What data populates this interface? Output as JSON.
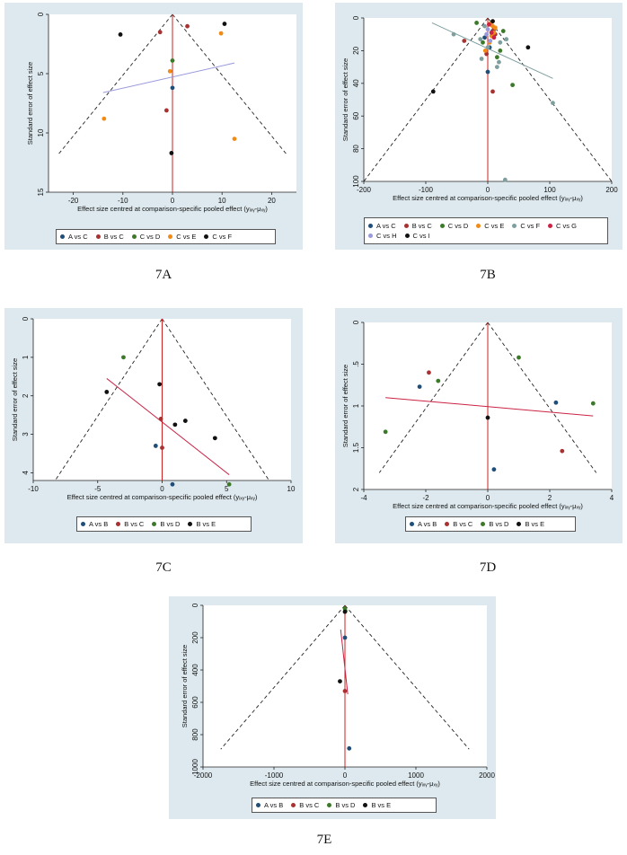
{
  "ylabel": "Standard error of effect size",
  "xlabel": "Effect size centred at comparison-specific pooled effect (yᵢₓᵧ-μₓᵧ)",
  "chart_data": [
    {
      "id": "7A",
      "type": "scatter",
      "caption": "7A",
      "xlabel": "Effect size centred at comparison-specific pooled effect (yᵢₓᵧ-μₓᵧ)",
      "ylabel": "Standard error of effect size",
      "xlim": [
        -25,
        25
      ],
      "ylim": [
        0,
        15
      ],
      "y_reversed": true,
      "xticks": [
        -20,
        -10,
        0,
        10,
        20
      ],
      "yticks": [
        0,
        5,
        10,
        15
      ],
      "funnel": {
        "apex": [
          0,
          0
        ],
        "bottom_se": 11.8,
        "bottom_half_width": 23
      },
      "series": [
        {
          "name": "A vs C",
          "color": "#1f4e79",
          "points": [
            [
              0,
              6.2
            ]
          ]
        },
        {
          "name": "B vs C",
          "color": "#a83232",
          "points": [
            [
              -2.5,
              1.5
            ],
            [
              3,
              1.0
            ],
            [
              -1.2,
              8.1
            ]
          ]
        },
        {
          "name": "C vs D",
          "color": "#3c7a2a",
          "points": [
            [
              0,
              3.9
            ]
          ]
        },
        {
          "name": "C vs E",
          "color": "#f28a16",
          "points": [
            [
              -13.8,
              8.8
            ],
            [
              12.5,
              10.5
            ],
            [
              9.8,
              1.6
            ],
            [
              -0.5,
              4.8
            ]
          ]
        },
        {
          "name": "C vs F",
          "color": "#111111",
          "points": [
            [
              -10.5,
              1.7
            ],
            [
              10.5,
              0.8
            ],
            [
              -0.2,
              11.7
            ]
          ]
        }
      ],
      "lines": [
        {
          "color": "#9999dd",
          "from": [
            -14,
            6.6
          ],
          "to": [
            12.5,
            4.1
          ]
        }
      ]
    },
    {
      "id": "7B",
      "type": "scatter",
      "caption": "7B",
      "xlabel": "Effect size centred at comparison-specific pooled effect (yᵢₓᵧ-μₓᵧ)",
      "ylabel": "Standard error of effect size",
      "xlim": [
        -200,
        200
      ],
      "ylim": [
        0,
        100
      ],
      "y_reversed": true,
      "xticks": [
        -200,
        -100,
        0,
        100,
        200
      ],
      "yticks": [
        0,
        20,
        40,
        60,
        80,
        100
      ],
      "funnel": {
        "apex": [
          0,
          0
        ],
        "bottom_se": 100,
        "bottom_half_width": 200
      },
      "series": [
        {
          "name": "A vs C",
          "color": "#1f4e79",
          "points": [
            [
              0,
              33
            ],
            [
              -5,
              12
            ],
            [
              8,
              8
            ],
            [
              3,
              18
            ]
          ]
        },
        {
          "name": "B vs C",
          "color": "#a83232",
          "points": [
            [
              -38,
              14
            ],
            [
              8,
              45
            ],
            [
              5,
              4
            ],
            [
              10,
              7
            ],
            [
              -2,
              22
            ],
            [
              12,
              10
            ]
          ]
        },
        {
          "name": "C vs D",
          "color": "#3c7a2a",
          "points": [
            [
              -18,
              3
            ],
            [
              40,
              41
            ],
            [
              12,
              6
            ],
            [
              -8,
              15
            ],
            [
              20,
              20
            ],
            [
              25,
              8
            ],
            [
              15,
              24
            ]
          ]
        },
        {
          "name": "C vs E",
          "color": "#f28a16",
          "points": [
            [
              5,
              3
            ],
            [
              8,
              5
            ],
            [
              10,
              9
            ],
            [
              12,
              6
            ],
            [
              6,
              11
            ],
            [
              -4,
              20
            ],
            [
              3,
              15
            ]
          ]
        },
        {
          "name": "C vs F",
          "color": "#7f9f9f",
          "points": [
            [
              105,
              52
            ],
            [
              -5,
              5
            ],
            [
              -12,
              13
            ],
            [
              30,
              13
            ],
            [
              15,
              30
            ],
            [
              18,
              27
            ],
            [
              -55,
              10
            ],
            [
              28,
              99
            ],
            [
              -10,
              25
            ],
            [
              20,
              15
            ],
            [
              0,
              18
            ]
          ]
        },
        {
          "name": "C vs G",
          "color": "#cc2244",
          "points": [
            [
              2,
              4
            ],
            [
              6,
              9
            ],
            [
              10,
              12
            ]
          ]
        },
        {
          "name": "C vs H",
          "color": "#9999dd",
          "points": [
            [
              0,
              7
            ],
            [
              4,
              14
            ],
            [
              -2,
              10
            ]
          ]
        },
        {
          "name": "C vs I",
          "color": "#111111",
          "points": [
            [
              -88,
              45
            ],
            [
              65,
              18
            ],
            [
              8,
              2
            ]
          ]
        }
      ],
      "lines": [
        {
          "color": "#7f9f9f",
          "from": [
            -90,
            3
          ],
          "to": [
            105,
            37
          ]
        }
      ]
    },
    {
      "id": "7C",
      "type": "scatter",
      "caption": "7C",
      "xlabel": "Effect size centred at comparison-specific pooled effect (yᵢₓᵧ-μₓᵧ)",
      "ylabel": "Standard error of effect size",
      "xlim": [
        -10,
        10
      ],
      "ylim": [
        0,
        4.2
      ],
      "y_reversed": true,
      "xticks": [
        -10,
        -5,
        0,
        5,
        10
      ],
      "yticks": [
        0,
        1,
        2,
        3,
        4
      ],
      "funnel": {
        "apex": [
          0,
          0
        ],
        "bottom_se": 4.2,
        "bottom_half_width": 8.3
      },
      "series": [
        {
          "name": "A vs B",
          "color": "#1f4e79",
          "points": [
            [
              -0.5,
              3.3
            ],
            [
              0.8,
              4.3
            ]
          ]
        },
        {
          "name": "B vs C",
          "color": "#a83232",
          "points": [
            [
              -0.1,
              2.6
            ],
            [
              0,
              3.35
            ]
          ]
        },
        {
          "name": "B vs D",
          "color": "#3c7a2a",
          "points": [
            [
              -3,
              1.0
            ],
            [
              5.2,
              4.3
            ]
          ]
        },
        {
          "name": "B vs E",
          "color": "#111111",
          "points": [
            [
              -4.3,
              1.9
            ],
            [
              -0.2,
              1.7
            ],
            [
              1.8,
              2.65
            ],
            [
              1,
              2.75
            ],
            [
              4.1,
              3.1
            ]
          ]
        }
      ],
      "lines": [
        {
          "color": "#cc2244",
          "from": [
            -4.3,
            1.55
          ],
          "to": [
            5.2,
            4.05
          ]
        }
      ]
    },
    {
      "id": "7D",
      "type": "scatter",
      "caption": "7D",
      "xlabel": "Effect size centred at comparison-specific pooled effect (yᵢₓᵧ-μₓᵧ)",
      "ylabel": "Standard error of effect size",
      "xlim": [
        -4,
        4
      ],
      "ylim": [
        0,
        2
      ],
      "y_reversed": true,
      "xticks": [
        -4,
        -2,
        0,
        2,
        4
      ],
      "yticks": [
        0,
        0.5,
        1,
        1.5,
        2
      ],
      "funnel": {
        "apex": [
          0,
          0
        ],
        "bottom_se": 1.8,
        "bottom_half_width": 3.5
      },
      "series": [
        {
          "name": "A vs B",
          "color": "#1f4e79",
          "points": [
            [
              -2.2,
              0.77
            ],
            [
              2.2,
              0.96
            ],
            [
              0.2,
              1.76
            ]
          ]
        },
        {
          "name": "B vs C",
          "color": "#a83232",
          "points": [
            [
              -1.9,
              0.6
            ],
            [
              2.4,
              1.54
            ]
          ]
        },
        {
          "name": "B vs D",
          "color": "#3c7a2a",
          "points": [
            [
              -1.6,
              0.7
            ],
            [
              1,
              0.42
            ],
            [
              3.4,
              0.97
            ],
            [
              -3.3,
              1.31
            ]
          ]
        },
        {
          "name": "B vs E",
          "color": "#111111",
          "points": [
            [
              0,
              1.14
            ]
          ]
        }
      ],
      "lines": [
        {
          "color": "#cc2244",
          "from": [
            -3.3,
            0.9
          ],
          "to": [
            3.4,
            1.12
          ]
        }
      ]
    },
    {
      "id": "7E",
      "type": "scatter",
      "caption": "7E",
      "xlabel": "Effect size centred at comparison-specific pooled effect (yᵢₓᵧ-μₓᵧ)",
      "ylabel": "Standard error of effect size",
      "xlim": [
        -2000,
        2000
      ],
      "ylim": [
        0,
        1000
      ],
      "y_reversed": true,
      "xticks": [
        -2000,
        -1000,
        0,
        1000,
        2000
      ],
      "yticks": [
        0,
        200,
        400,
        600,
        800,
        1000
      ],
      "funnel": {
        "apex": [
          0,
          0
        ],
        "bottom_se": 890,
        "bottom_half_width": 1750
      },
      "series": [
        {
          "name": "A vs B",
          "color": "#1f4e79",
          "points": [
            [
              0,
              200
            ],
            [
              60,
              885
            ]
          ]
        },
        {
          "name": "B vs C",
          "color": "#a83232",
          "points": [
            [
              0,
              530
            ]
          ]
        },
        {
          "name": "B vs D",
          "color": "#3c7a2a",
          "points": [
            [
              0,
              20
            ],
            [
              5,
              35
            ]
          ]
        },
        {
          "name": "B vs E",
          "color": "#111111",
          "points": [
            [
              -70,
              470
            ],
            [
              0,
              40
            ]
          ]
        }
      ],
      "lines": [
        {
          "color": "#cc2244",
          "from": [
            -60,
            150
          ],
          "to": [
            40,
            550
          ]
        }
      ]
    }
  ],
  "layout_legends": [
    [
      "A vs C",
      "B vs C",
      "C vs D",
      "C vs E",
      "C vs F"
    ],
    [
      "A vs C",
      "B vs C",
      "C vs D",
      "C vs E",
      "C vs F",
      "C vs G",
      "C vs H",
      "C vs I"
    ],
    [
      "A vs B",
      "B vs C",
      "B vs D",
      "B vs E"
    ],
    [
      "A vs B",
      "B vs C",
      "B vs D",
      "B vs E"
    ],
    [
      "A vs B",
      "B vs C",
      "B vs D",
      "B vs E"
    ]
  ]
}
